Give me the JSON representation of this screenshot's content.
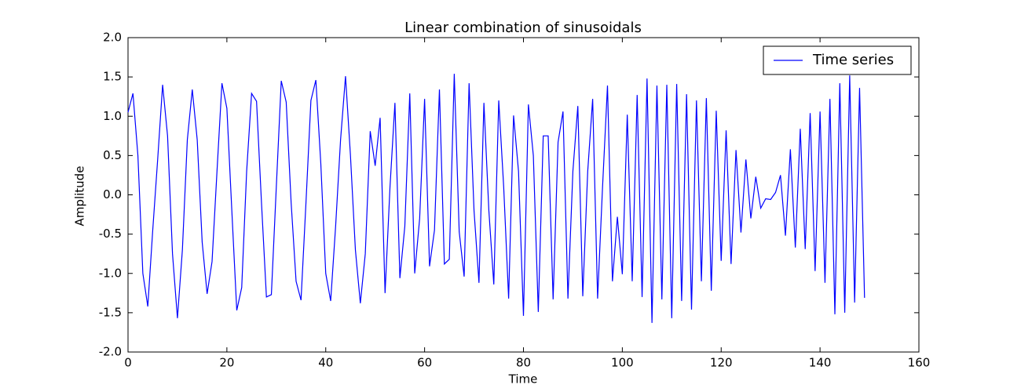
{
  "chart_data": {
    "type": "line",
    "title": "Linear combination of sinusoidals",
    "xlabel": "Time",
    "ylabel": "Amplitude",
    "x": [
      0,
      1,
      2,
      3,
      4,
      5,
      6,
      7,
      8,
      9,
      10,
      11,
      12,
      13,
      14,
      15,
      16,
      17,
      18,
      19,
      20,
      21,
      22,
      23,
      24,
      25,
      26,
      27,
      28,
      29,
      30,
      31,
      32,
      33,
      34,
      35,
      36,
      37,
      38,
      39,
      40,
      41,
      42,
      43,
      44,
      45,
      46,
      47,
      48,
      49,
      50,
      51,
      52,
      53,
      54,
      55,
      56,
      57,
      58,
      59,
      60,
      61,
      62,
      63,
      64,
      65,
      66,
      67,
      68,
      69,
      70,
      71,
      72,
      73,
      74,
      75,
      76,
      77,
      78,
      79,
      80,
      81,
      82,
      83,
      84,
      85,
      86,
      87,
      88,
      89,
      90,
      91,
      92,
      93,
      94,
      95,
      96,
      97,
      98,
      99,
      100,
      101,
      102,
      103,
      104,
      105,
      106,
      107,
      108,
      109,
      110,
      111,
      112,
      113,
      114,
      115,
      116,
      117,
      118,
      119,
      120,
      121,
      122,
      123,
      124,
      125,
      126,
      127,
      128,
      129,
      130,
      131,
      132,
      133,
      134,
      135,
      136,
      137,
      138,
      139,
      140,
      141,
      142,
      143,
      144,
      145,
      146,
      147,
      148,
      149
    ],
    "series": [
      {
        "name": "Time series",
        "color": "#0000ff",
        "values": [
          1.05,
          1.29,
          0.5,
          -1.0,
          -1.42,
          -0.45,
          0.45,
          1.4,
          0.75,
          -0.75,
          -1.57,
          -0.7,
          0.7,
          1.34,
          0.7,
          -0.6,
          -1.26,
          -0.85,
          0.3,
          1.42,
          1.1,
          -0.2,
          -1.47,
          -1.18,
          0.3,
          1.29,
          1.19,
          -0.1,
          -1.3,
          -1.27,
          0.1,
          1.45,
          1.18,
          -0.1,
          -1.1,
          -1.34,
          -0.1,
          1.2,
          1.46,
          0.4,
          -1.0,
          -1.35,
          -0.4,
          0.7,
          1.51,
          0.5,
          -0.7,
          -1.38,
          -0.75,
          0.81,
          0.37,
          0.98,
          -1.25,
          0.1,
          1.17,
          -1.06,
          -0.4,
          1.29,
          -1.0,
          -0.3,
          1.22,
          -0.91,
          -0.45,
          1.34,
          -0.88,
          -0.82,
          1.54,
          -0.47,
          -1.04,
          1.42,
          -0.2,
          -1.12,
          1.17,
          -0.2,
          -1.14,
          1.2,
          0.1,
          -1.32,
          1.01,
          0.3,
          -1.54,
          1.15,
          0.5,
          -1.49,
          0.75,
          0.75,
          -1.33,
          0.67,
          1.06,
          -1.32,
          0.3,
          1.13,
          -1.29,
          0.3,
          1.22,
          -1.32,
          0.1,
          1.39,
          -1.1,
          -0.28,
          -1.01,
          1.02,
          -1.1,
          1.27,
          -1.3,
          1.48,
          -1.63,
          1.39,
          -1.33,
          1.4,
          -1.57,
          1.41,
          -1.35,
          1.28,
          -1.46,
          1.2,
          -1.1,
          1.23,
          -1.22,
          1.07,
          -0.84,
          0.82,
          -0.88,
          0.57,
          -0.48,
          0.45,
          -0.3,
          0.23,
          -0.17,
          -0.05,
          -0.06,
          0.03,
          0.25,
          -0.52,
          0.58,
          -0.67,
          0.84,
          -0.69,
          1.04,
          -0.97,
          1.06,
          -1.12,
          1.22,
          -1.52,
          1.42,
          -1.5,
          1.52,
          -1.37,
          1.36,
          -1.31
        ]
      }
    ],
    "xlim": [
      0,
      160
    ],
    "xticks": [
      0,
      20,
      40,
      60,
      80,
      100,
      120,
      140,
      160
    ],
    "ylim": [
      -2,
      2
    ],
    "yticks": [
      {
        "value": -2,
        "label": "-2.0"
      },
      {
        "value": -1.5,
        "label": "-1.5"
      },
      {
        "value": -1,
        "label": "-1.0"
      },
      {
        "value": -0.5,
        "label": "-0.5"
      },
      {
        "value": 0,
        "label": "0.0"
      },
      {
        "value": 0.5,
        "label": "0.5"
      },
      {
        "value": 1,
        "label": "1.0"
      },
      {
        "value": 1.5,
        "label": "1.5"
      },
      {
        "value": 2,
        "label": "2.0"
      }
    ],
    "legend": "upper right",
    "grid": false
  }
}
